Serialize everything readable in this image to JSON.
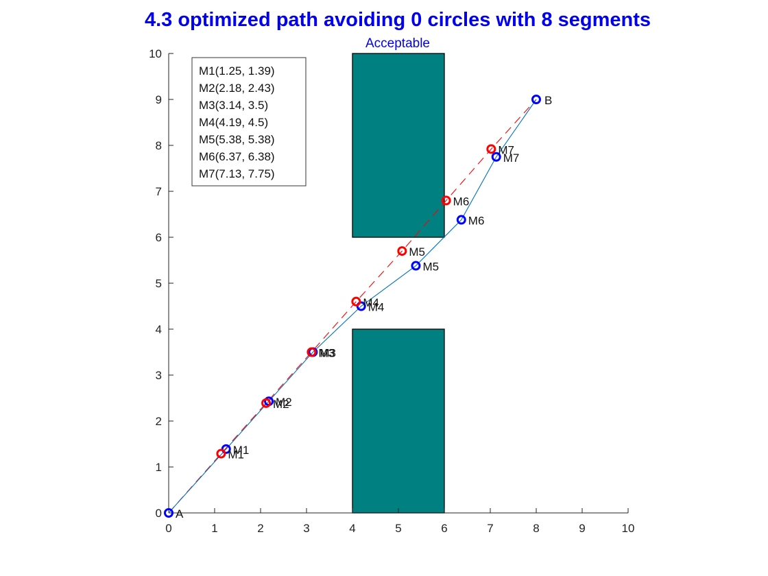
{
  "chart_data": {
    "type": "line",
    "title": "4.3 optimized path avoiding 0 circles with 8 segments",
    "subtitle": "Acceptable",
    "xlabel": "",
    "ylabel": "",
    "xlim": [
      0,
      10
    ],
    "ylim": [
      0,
      10
    ],
    "xticks": [
      "0",
      "1",
      "2",
      "3",
      "4",
      "5",
      "6",
      "7",
      "8",
      "9",
      "10"
    ],
    "yticks": [
      "0",
      "1",
      "2",
      "3",
      "4",
      "5",
      "6",
      "7",
      "8",
      "9",
      "10"
    ],
    "grid": false,
    "colors": {
      "title": "#0000ee",
      "obstacle": "#008080",
      "optimized": "#0072bd",
      "initial": "#ff0000",
      "optimized_marker": "#0000ff",
      "initial_marker": "#ff0000"
    },
    "obstacles": [
      {
        "x": [
          4,
          6
        ],
        "y": [
          0,
          4
        ]
      },
      {
        "x": [
          4,
          6
        ],
        "y": [
          6,
          10
        ]
      }
    ],
    "start": {
      "label": "A",
      "x": 0,
      "y": 0
    },
    "end": {
      "label": "B",
      "x": 8,
      "y": 9
    },
    "optimized_points": [
      {
        "label": "M1",
        "x": 1.25,
        "y": 1.39
      },
      {
        "label": "M2",
        "x": 2.18,
        "y": 2.43
      },
      {
        "label": "M3",
        "x": 3.14,
        "y": 3.5
      },
      {
        "label": "M4",
        "x": 4.19,
        "y": 4.5
      },
      {
        "label": "M5",
        "x": 5.38,
        "y": 5.38
      },
      {
        "label": "M6",
        "x": 6.37,
        "y": 6.38
      },
      {
        "label": "M7",
        "x": 7.13,
        "y": 7.75
      }
    ],
    "initial_points": [
      {
        "label": "M1",
        "x": 1.14,
        "y": 1.29
      },
      {
        "label": "M2",
        "x": 2.12,
        "y": 2.39
      },
      {
        "label": "M3",
        "x": 3.11,
        "y": 3.5
      },
      {
        "label": "M4",
        "x": 4.08,
        "y": 4.6
      },
      {
        "label": "M5",
        "x": 5.08,
        "y": 5.7
      },
      {
        "label": "M6",
        "x": 6.04,
        "y": 6.8
      },
      {
        "label": "M7",
        "x": 7.02,
        "y": 7.92
      }
    ],
    "legend": {
      "placement": "top-left",
      "entries": [
        "M1(1.25, 1.39)",
        "M2(2.18, 2.43)",
        "M3(3.14, 3.5)",
        "M4(4.19, 4.5)",
        "M5(5.38, 5.38)",
        "M6(6.37, 6.38)",
        "M7(7.13, 7.75)"
      ]
    }
  }
}
